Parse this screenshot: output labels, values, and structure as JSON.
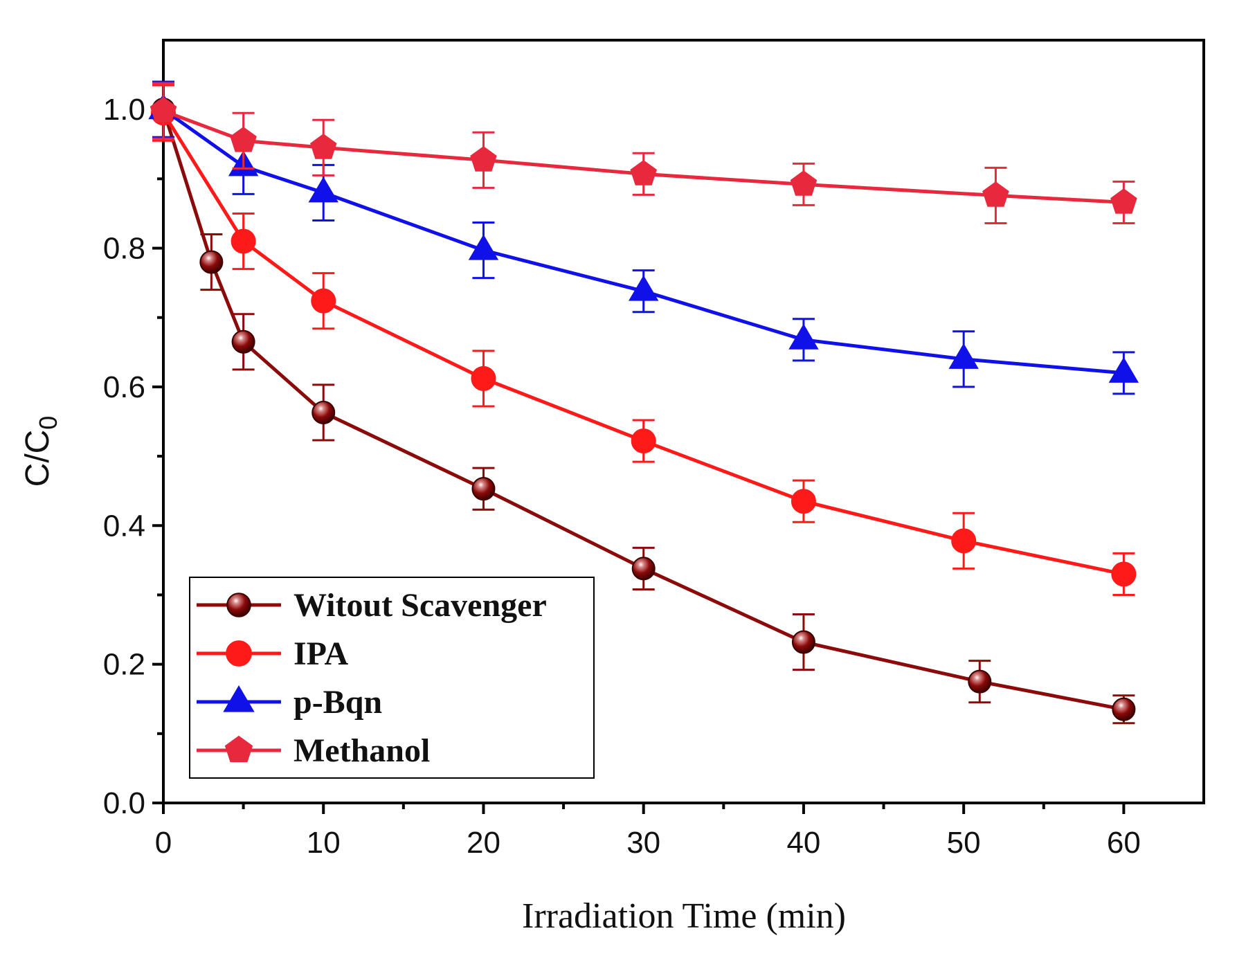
{
  "chart_data": {
    "type": "line",
    "title": "",
    "xlabel": "Irradiation Time (min)",
    "ylabel_main": "C/C",
    "ylabel_sub": "0",
    "xlim": [
      0,
      65
    ],
    "ylim": [
      0.0,
      1.1
    ],
    "x_ticks": [
      0,
      10,
      20,
      30,
      40,
      50,
      60
    ],
    "x_tick_labels": [
      "0",
      "10",
      "20",
      "30",
      "40",
      "50",
      "60"
    ],
    "y_ticks": [
      0.0,
      0.2,
      0.4,
      0.6,
      0.8,
      1.0
    ],
    "y_tick_labels": [
      "0.0",
      "0.2",
      "0.4",
      "0.6",
      "0.8",
      "1.0"
    ],
    "x_minor_ticks": [
      5,
      15,
      25,
      35,
      45,
      55
    ],
    "y_minor_ticks": [
      0.1,
      0.3,
      0.5,
      0.7,
      0.9
    ],
    "legend_position": "bottom-left",
    "series": [
      {
        "name": "Witout Scavenger",
        "color": "#8b0a0a",
        "marker": "sphere",
        "x": [
          0,
          3,
          5,
          10,
          20,
          30,
          40,
          51,
          60
        ],
        "y": [
          1.0,
          0.78,
          0.665,
          0.563,
          0.453,
          0.338,
          0.232,
          0.175,
          0.135
        ],
        "err": [
          0.04,
          0.04,
          0.04,
          0.04,
          0.03,
          0.03,
          0.04,
          0.03,
          0.02
        ]
      },
      {
        "name": "IPA",
        "color": "#ff1a1a",
        "marker": "circle",
        "x": [
          0,
          5,
          10,
          20,
          30,
          40,
          50,
          60
        ],
        "y": [
          0.995,
          0.81,
          0.724,
          0.612,
          0.522,
          0.435,
          0.378,
          0.33
        ],
        "err": [
          0.04,
          0.04,
          0.04,
          0.04,
          0.03,
          0.03,
          0.04,
          0.03
        ]
      },
      {
        "name": "p-Bqn",
        "color": "#1010e8",
        "marker": "triangle",
        "x": [
          0,
          5,
          10,
          20,
          30,
          40,
          50,
          60
        ],
        "y": [
          1.0,
          0.918,
          0.88,
          0.797,
          0.738,
          0.668,
          0.64,
          0.62
        ],
        "err": [
          0.04,
          0.04,
          0.04,
          0.04,
          0.03,
          0.03,
          0.04,
          0.03
        ]
      },
      {
        "name": "Methanol",
        "color": "#e8283c",
        "marker": "pentagon",
        "x": [
          0,
          5,
          10,
          20,
          30,
          40,
          52,
          60
        ],
        "y": [
          0.998,
          0.955,
          0.945,
          0.927,
          0.907,
          0.892,
          0.876,
          0.866
        ],
        "err": [
          0.04,
          0.04,
          0.04,
          0.04,
          0.03,
          0.03,
          0.04,
          0.03
        ]
      }
    ]
  }
}
